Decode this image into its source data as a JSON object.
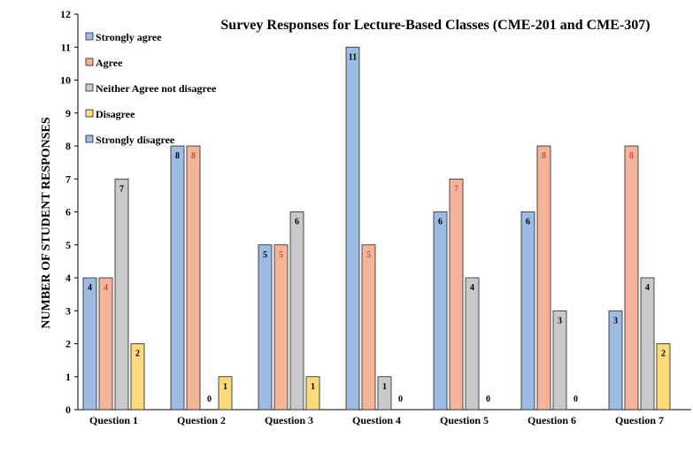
{
  "chart_data": {
    "type": "bar",
    "title": "Survey Responses for Lecture-Based Classes (CME-201 and CME-307)",
    "xlabel": "",
    "ylabel": "NUMBER OF STUDENT RESPONSES",
    "ylim": [
      0,
      12
    ],
    "yticks": [
      0,
      1,
      2,
      3,
      4,
      5,
      6,
      7,
      8,
      9,
      10,
      11,
      12
    ],
    "grid": false,
    "legend_position": "top-left",
    "categories": [
      "Question 1",
      "Question 2",
      "Question 3",
      "Question 4",
      "Question 5",
      "Question 6",
      "Question 7"
    ],
    "series": [
      {
        "name": "Strongly agree",
        "color": "#9dbbe3",
        "label_color": "#000000",
        "values": [
          4,
          8,
          5,
          11,
          6,
          6,
          3
        ]
      },
      {
        "name": "Agree",
        "color": "#f4b49a",
        "label_color": "#c0504d",
        "values": [
          4,
          8,
          5,
          5,
          7,
          8,
          8
        ]
      },
      {
        "name": "Neither Agree not disagree",
        "color": "#c9c9c9",
        "label_color": "#000000",
        "values": [
          7,
          0,
          6,
          1,
          4,
          3,
          4
        ]
      },
      {
        "name": "Disagree",
        "color": "#fdd97e",
        "label_color": "#000000",
        "values": [
          2,
          1,
          1,
          0,
          0,
          0,
          2
        ]
      },
      {
        "name": "Strongly disagree",
        "color": "#9dbbe3",
        "label_color": "#000000",
        "values": [
          0,
          0,
          0,
          0,
          0,
          0,
          0
        ]
      }
    ]
  }
}
